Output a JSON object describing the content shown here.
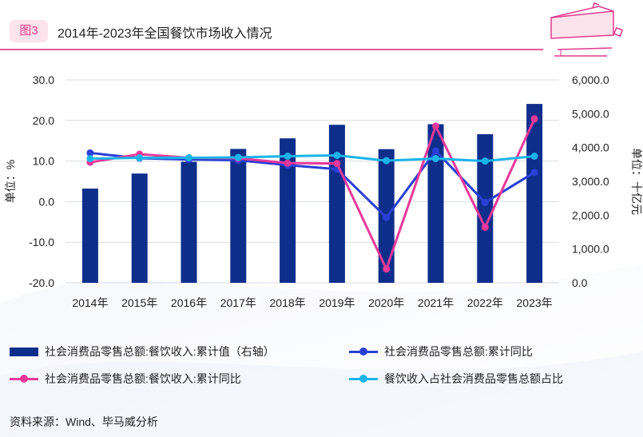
{
  "header": {
    "fig_label": "图3",
    "title": "2014年-2023年全国餐饮市场收入情况"
  },
  "chart_data": {
    "type": "bar+line",
    "categories": [
      "2014年",
      "2015年",
      "2016年",
      "2017年",
      "2018年",
      "2019年",
      "2020年",
      "2021年",
      "2022年",
      "2023年"
    ],
    "left_axis": {
      "label": "单位：%",
      "range": [
        -20,
        30
      ],
      "ticks": [
        "30.0",
        "20.0",
        "10.0",
        "0.0",
        "-10.0",
        "-20.0"
      ]
    },
    "right_axis": {
      "label": "单位：十亿元",
      "range": [
        0,
        6000
      ],
      "ticks": [
        "6,000.0",
        "5,000.0",
        "4,000.0",
        "3,000.0",
        "2,000.0",
        "1,000.0",
        "0.0"
      ]
    },
    "bar_series": {
      "name": "社会消费品零售总额:餐饮收入:累计值（右轴）",
      "axis": "right",
      "color": "#0e2e8c",
      "values": [
        2786,
        3231,
        3579,
        3959,
        4271,
        4672,
        3952,
        4690,
        4394,
        5289
      ]
    },
    "line_series": [
      {
        "name": "社会消费品零售总额:累计同比",
        "axis": "left",
        "color": "#2a3fd6",
        "values": [
          12.0,
          10.7,
          10.4,
          10.2,
          9.0,
          8.0,
          -3.9,
          12.5,
          -0.2,
          7.2
        ]
      },
      {
        "name": "社会消费品零售总额:餐饮收入:累计同比",
        "axis": "left",
        "color": "#e8399a",
        "values": [
          9.7,
          11.7,
          10.8,
          10.7,
          9.5,
          9.4,
          -16.6,
          18.6,
          -6.3,
          20.4
        ]
      },
      {
        "name": "餐饮收入占社会消费品零售总额占比",
        "axis": "left",
        "color": "#1ab4e8",
        "values": [
          10.6,
          10.8,
          10.8,
          10.9,
          11.2,
          11.4,
          10.1,
          10.6,
          10.0,
          11.2
        ]
      }
    ]
  },
  "legend": {
    "bar": "社会消费品零售总额:餐饮收入:累计值（右轴）",
    "line1": "社会消费品零售总额:累计同比",
    "line2": "社会消费品零售总额:餐饮收入:累计同比",
    "line3": "餐饮收入占社会消费品零售总额占比"
  },
  "source": "资料来源：Wind、毕马威分析"
}
